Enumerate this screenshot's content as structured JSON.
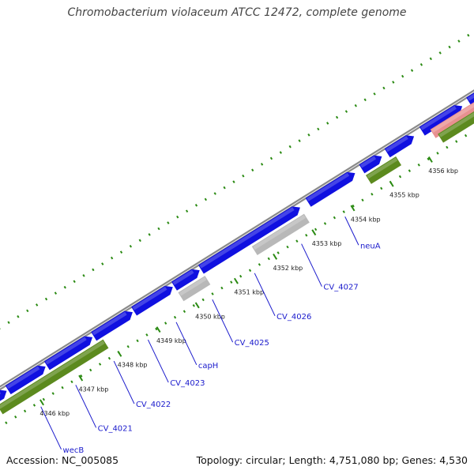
{
  "title": "Chromobacterium violaceum ATCC 12472, complete genome",
  "footer": {
    "accession": "Accession: NC_005085",
    "stats": "Topology: circular; Length: 4,751,080 bp; Genes: 4,530"
  },
  "colors": {
    "cds": "#1010e0",
    "other_green": "#5c8a1e",
    "grey": "#b8b8b8",
    "pink": "#e89090",
    "backbone": "#8a8a8a",
    "dots": "#2a8a12",
    "label": "#1a1acc"
  },
  "ticks": [
    {
      "label": "4346 kbp"
    },
    {
      "label": "4347 kbp"
    },
    {
      "label": "4348 kbp"
    },
    {
      "label": "4349 kbp"
    },
    {
      "label": "4350 kbp"
    },
    {
      "label": "4351 kbp"
    },
    {
      "label": "4352 kbp"
    },
    {
      "label": "4353 kbp"
    },
    {
      "label": "4354 kbp"
    },
    {
      "label": "4355 kbp"
    },
    {
      "label": "4356 kbp"
    }
  ],
  "genes": [
    {
      "name": "wecB"
    },
    {
      "name": "CV_4021"
    },
    {
      "name": "CV_4022"
    },
    {
      "name": "CV_4023"
    },
    {
      "name": "capH"
    },
    {
      "name": "CV_4025"
    },
    {
      "name": "CV_4026"
    },
    {
      "name": "CV_4027"
    },
    {
      "name": "neuA"
    }
  ]
}
